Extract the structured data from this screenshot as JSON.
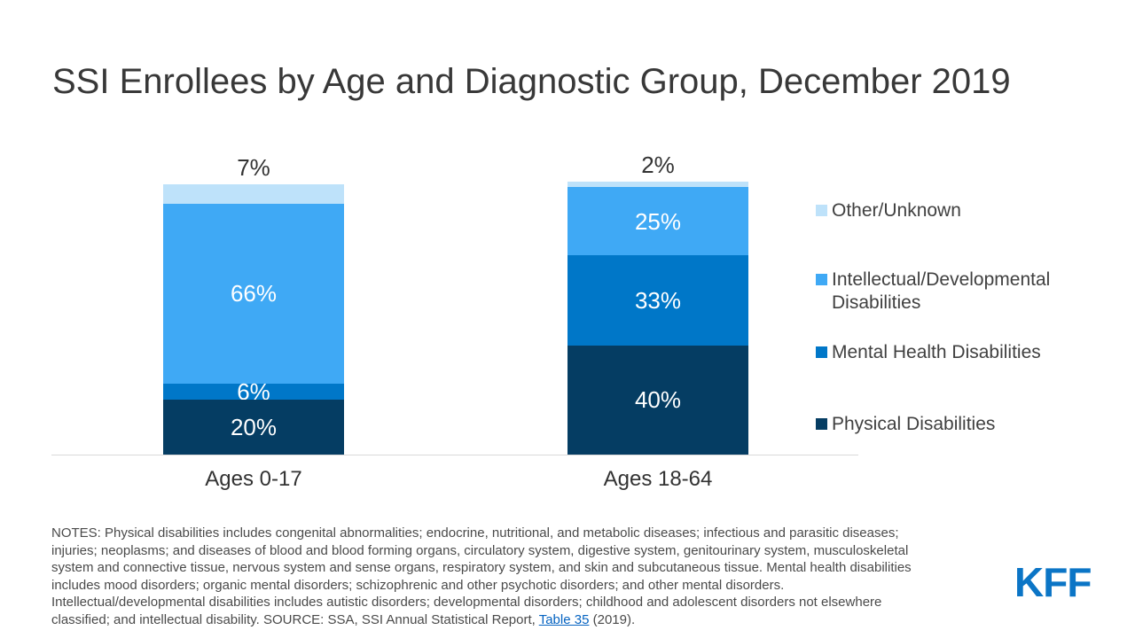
{
  "title": "SSI Enrollees by Age and Diagnostic Group, December 2019",
  "chart_data": {
    "type": "bar",
    "subtype": "stacked-percent-column",
    "unit": "%",
    "title": "SSI Enrollees by Age and Diagnostic Group, December 2019",
    "categories": [
      "Ages 0-17",
      "Ages 18-64"
    ],
    "series": [
      {
        "name": "Physical Disabilities",
        "color": "#053d63",
        "values": [
          20,
          40
        ]
      },
      {
        "name": "Mental Health Disabilities",
        "color": "#0077c8",
        "values": [
          6,
          33
        ]
      },
      {
        "name": "Intellectual/Developmental Disabilities",
        "color": "#3fa9f5",
        "values": [
          66,
          25
        ]
      },
      {
        "name": "Other/Unknown",
        "color": "#bee2fa",
        "values": [
          7,
          2
        ]
      }
    ],
    "legend": [
      "Other/Unknown",
      "Intellectual/Developmental Disabilities",
      "Mental Health Disabilities",
      "Physical Disabilities"
    ],
    "legend_position": "right",
    "value_label_style": "inside white labels; topmost (Other/Unknown) segment labeled above bar in dark text",
    "ylim": [
      0,
      100
    ],
    "grid": false,
    "axis_line_color": "#d9d9d9"
  },
  "notes": {
    "lines": [
      "NOTES: Physical disabilities includes congenital abnormalities; endocrine, nutritional, and metabolic diseases; infectious and parasitic diseases;",
      "injuries; neoplasms; and diseases of blood and blood forming organs, circulatory system, digestive system, genitourinary system, musculoskeletal",
      "system and connective tissue, nervous system and sense organs, respiratory system, and skin and subcutaneous tissue. Mental health disabilities",
      "includes mood disorders; organic mental disorders; schizophrenic and other psychotic disorders; and other mental disorders.",
      "Intellectual/developmental disabilities includes autistic disorders; developmental disorders; childhood and adolescent disorders not elsewhere"
    ],
    "last_line_before": "classified; and intellectual disability. SOURCE: SSA, SSI Annual Statistical Report, ",
    "link_label": "Table 35",
    "last_line_after": " (2019)."
  },
  "branding": {
    "logo_text": "KFF",
    "logo_color": "#0b75c6"
  }
}
